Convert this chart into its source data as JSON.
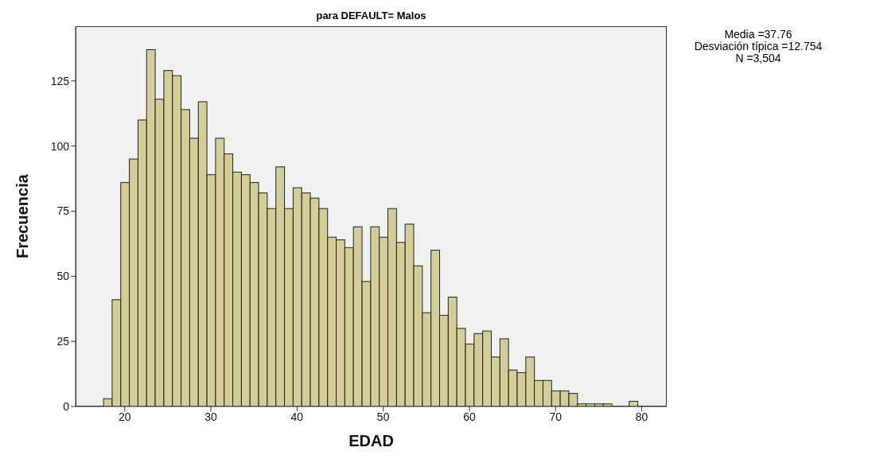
{
  "chart_data": {
    "type": "histogram",
    "title": "para DEFAULT= Malos",
    "xlabel": "EDAD",
    "ylabel": "Frecuencia",
    "annotations": [
      "Media =37.76",
      "Desviación típica =12.754",
      "N =3,504"
    ],
    "bins": [
      17.5,
      18.5,
      19.5,
      20.5,
      21.5,
      22.5,
      23.5,
      24.5,
      25.5,
      26.5,
      27.5,
      28.5,
      29.5,
      30.5,
      31.5,
      32.5,
      33.5,
      34.5,
      35.5,
      36.5,
      37.5,
      38.5,
      39.5,
      40.5,
      41.5,
      42.5,
      43.5,
      44.5,
      45.5,
      46.5,
      47.5,
      48.5,
      49.5,
      50.5,
      51.5,
      52.5,
      53.5,
      54.5,
      55.5,
      56.5,
      57.5,
      58.5,
      59.5,
      60.5,
      61.5,
      62.5,
      63.5,
      64.5,
      65.5,
      66.5,
      67.5,
      68.5,
      69.5,
      70.5,
      71.5,
      72.5,
      73.5,
      74.5,
      75.5,
      76.5,
      77.5,
      78.5,
      79.5
    ],
    "values": [
      3,
      41,
      86,
      95,
      110,
      137,
      118,
      129,
      127,
      114,
      103,
      117,
      89,
      103,
      97,
      90,
      89,
      86,
      82,
      76,
      92,
      76,
      84,
      82,
      80,
      76,
      65,
      64,
      61,
      69,
      48,
      69,
      65,
      76,
      63,
      70,
      54,
      36,
      60,
      35,
      42,
      30,
      24,
      28,
      29,
      19,
      26,
      14,
      13,
      19,
      10,
      10,
      6,
      6,
      5,
      1,
      1,
      1,
      1,
      0,
      0,
      2
    ],
    "color": "#d3cd98",
    "xlim": [
      14.3,
      82.9
    ],
    "xticks": [
      20,
      30,
      40,
      50,
      60,
      70,
      80
    ],
    "ylim": [
      0,
      146
    ],
    "yticks": [
      0,
      25,
      50,
      75,
      100,
      125
    ],
    "grid": false
  }
}
